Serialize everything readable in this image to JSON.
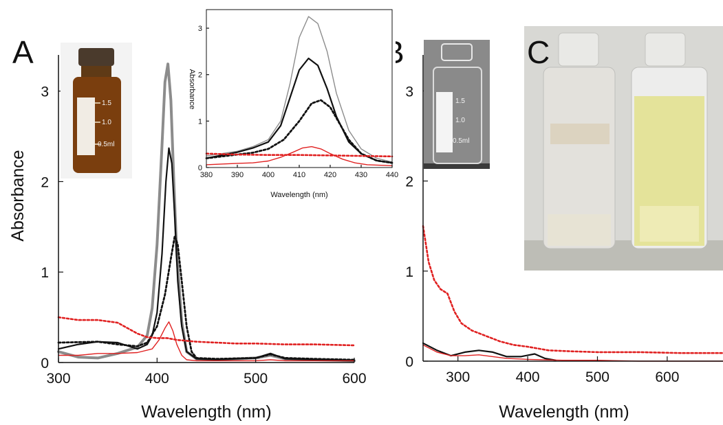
{
  "panels": {
    "a_letter": "A",
    "b_letter": "B",
    "c_letter": "C"
  },
  "vial_graduations": [
    "1.5",
    "1.0",
    "0.5ml"
  ],
  "colors": {
    "gray_series": "#8c8c8c",
    "black_series": "#111111",
    "red_series": "#e02020",
    "amber_vial": "#7a3e0e",
    "clear_vial_bg": "#8a8a8a",
    "photo_bg": "#d8d8d4",
    "yellow_solution": "#e4e39a"
  },
  "chart_data": [
    {
      "id": "panel-a-main",
      "type": "line",
      "xlabel": "Wavelength (nm)",
      "ylabel": "Absorbance",
      "xlim": [
        300,
        600
      ],
      "ylim": [
        0,
        3.4
      ],
      "xticks": [
        "300",
        "400",
        "500",
        "600"
      ],
      "yticks": [
        "0",
        "1",
        "2",
        "3"
      ],
      "grid": false,
      "series": [
        {
          "style": "solid-gray-thick",
          "color": "#8c8c8c",
          "x": [
            300,
            320,
            340,
            360,
            380,
            390,
            395,
            400,
            405,
            408,
            411,
            414,
            417,
            420,
            425,
            430,
            440,
            460,
            500,
            515,
            530,
            560,
            600
          ],
          "y": [
            0.12,
            0.06,
            0.05,
            0.1,
            0.17,
            0.3,
            0.6,
            1.3,
            2.4,
            3.1,
            3.3,
            2.9,
            2.0,
            1.2,
            0.45,
            0.12,
            0.04,
            0.03,
            0.05,
            0.08,
            0.04,
            0.03,
            0.02
          ]
        },
        {
          "style": "solid-black",
          "color": "#111111",
          "x": [
            300,
            320,
            340,
            360,
            380,
            390,
            395,
            400,
            405,
            409,
            412,
            415,
            418,
            421,
            425,
            430,
            440,
            460,
            500,
            515,
            530,
            560,
            600
          ],
          "y": [
            0.15,
            0.2,
            0.23,
            0.22,
            0.15,
            0.2,
            0.3,
            0.55,
            1.2,
            2.0,
            2.37,
            2.2,
            1.6,
            0.9,
            0.4,
            0.12,
            0.04,
            0.03,
            0.05,
            0.1,
            0.04,
            0.03,
            0.02
          ]
        },
        {
          "style": "dotted-black",
          "color": "#111111",
          "x": [
            300,
            340,
            360,
            380,
            390,
            400,
            408,
            414,
            418,
            421,
            425,
            430,
            435,
            440,
            460,
            500,
            515,
            530,
            560,
            600
          ],
          "y": [
            0.22,
            0.23,
            0.2,
            0.18,
            0.22,
            0.4,
            0.75,
            1.15,
            1.4,
            1.3,
            0.9,
            0.4,
            0.12,
            0.05,
            0.04,
            0.05,
            0.09,
            0.05,
            0.04,
            0.03
          ]
        },
        {
          "style": "solid-red",
          "color": "#e02020",
          "x": [
            300,
            320,
            340,
            360,
            380,
            395,
            402,
            408,
            412,
            416,
            420,
            425,
            430,
            440,
            460,
            500,
            515,
            530,
            560,
            600
          ],
          "y": [
            0.08,
            0.08,
            0.1,
            0.1,
            0.11,
            0.15,
            0.25,
            0.38,
            0.45,
            0.35,
            0.2,
            0.08,
            0.03,
            0.02,
            0.02,
            0.02,
            0.03,
            0.02,
            0.02,
            0.02
          ]
        },
        {
          "style": "dotted-red",
          "color": "#e02020",
          "x": [
            300,
            320,
            340,
            360,
            370,
            380,
            390,
            400,
            410,
            420,
            440,
            460,
            480,
            500,
            530,
            560,
            600
          ],
          "y": [
            0.5,
            0.47,
            0.47,
            0.44,
            0.38,
            0.32,
            0.28,
            0.27,
            0.27,
            0.25,
            0.23,
            0.22,
            0.21,
            0.21,
            0.2,
            0.2,
            0.19
          ]
        }
      ]
    },
    {
      "id": "panel-a-inset",
      "type": "line",
      "xlabel": "Wavelength (nm)",
      "ylabel": "Absorbance",
      "xlim": [
        380,
        440
      ],
      "ylim": [
        0,
        3.4
      ],
      "xticks": [
        "380",
        "390",
        "400",
        "410",
        "420",
        "430",
        "440"
      ],
      "yticks": [
        "0",
        "1",
        "2",
        "3"
      ],
      "grid": false,
      "series": [
        {
          "style": "solid-gray",
          "color": "#8c8c8c",
          "x": [
            380,
            390,
            395,
            400,
            404,
            407,
            410,
            413,
            416,
            419,
            422,
            426,
            430,
            435,
            440
          ],
          "y": [
            0.25,
            0.35,
            0.45,
            0.6,
            1.0,
            1.8,
            2.8,
            3.25,
            3.1,
            2.5,
            1.6,
            0.8,
            0.4,
            0.2,
            0.12
          ]
        },
        {
          "style": "solid-black",
          "color": "#111111",
          "x": [
            380,
            390,
            395,
            400,
            404,
            407,
            410,
            413,
            416,
            419,
            422,
            426,
            430,
            435,
            440
          ],
          "y": [
            0.2,
            0.33,
            0.42,
            0.55,
            0.9,
            1.5,
            2.1,
            2.35,
            2.2,
            1.7,
            1.1,
            0.55,
            0.3,
            0.15,
            0.1
          ]
        },
        {
          "style": "dotted-black",
          "color": "#111111",
          "x": [
            380,
            390,
            395,
            400,
            405,
            410,
            414,
            417,
            420,
            423,
            426,
            430,
            435,
            440
          ],
          "y": [
            0.2,
            0.28,
            0.32,
            0.4,
            0.6,
            1.0,
            1.38,
            1.45,
            1.3,
            0.95,
            0.6,
            0.3,
            0.15,
            0.1
          ]
        },
        {
          "style": "solid-red",
          "color": "#e02020",
          "x": [
            380,
            390,
            395,
            400,
            404,
            408,
            411,
            414,
            417,
            420,
            424,
            428,
            432,
            440
          ],
          "y": [
            0.06,
            0.09,
            0.1,
            0.14,
            0.22,
            0.33,
            0.42,
            0.45,
            0.4,
            0.3,
            0.18,
            0.1,
            0.06,
            0.04
          ]
        },
        {
          "style": "dotted-red",
          "color": "#e02020",
          "x": [
            380,
            390,
            400,
            410,
            420,
            430,
            440
          ],
          "y": [
            0.3,
            0.28,
            0.27,
            0.27,
            0.26,
            0.25,
            0.24
          ]
        }
      ]
    },
    {
      "id": "panel-b-main",
      "type": "line",
      "xlabel": "Wavelength (nm)",
      "ylabel": "",
      "xlim": [
        250,
        680
      ],
      "ylim": [
        0,
        3.4
      ],
      "xticks": [
        "300",
        "400",
        "500",
        "600"
      ],
      "yticks": [
        "0",
        "1",
        "2",
        "3"
      ],
      "grid": false,
      "series": [
        {
          "style": "dotted-red",
          "color": "#e02020",
          "x": [
            250,
            258,
            266,
            275,
            285,
            295,
            305,
            320,
            340,
            360,
            380,
            400,
            430,
            460,
            500,
            560,
            620,
            680
          ],
          "y": [
            1.5,
            1.1,
            0.9,
            0.8,
            0.75,
            0.55,
            0.42,
            0.34,
            0.28,
            0.22,
            0.18,
            0.16,
            0.12,
            0.11,
            0.1,
            0.1,
            0.09,
            0.09
          ]
        },
        {
          "style": "solid-black",
          "color": "#111111",
          "x": [
            250,
            270,
            290,
            310,
            330,
            350,
            370,
            390,
            410,
            425,
            440
          ],
          "y": [
            0.2,
            0.12,
            0.06,
            0.1,
            0.12,
            0.1,
            0.05,
            0.05,
            0.08,
            0.03,
            0.01
          ]
        },
        {
          "style": "solid-red",
          "color": "#e02020",
          "x": [
            250,
            270,
            290,
            310,
            330,
            350,
            370,
            400,
            450,
            500,
            560,
            620,
            680
          ],
          "y": [
            0.18,
            0.1,
            0.06,
            0.06,
            0.07,
            0.05,
            0.03,
            0.02,
            0.01,
            0.01,
            0.0,
            0.0,
            0.0
          ]
        }
      ]
    }
  ]
}
